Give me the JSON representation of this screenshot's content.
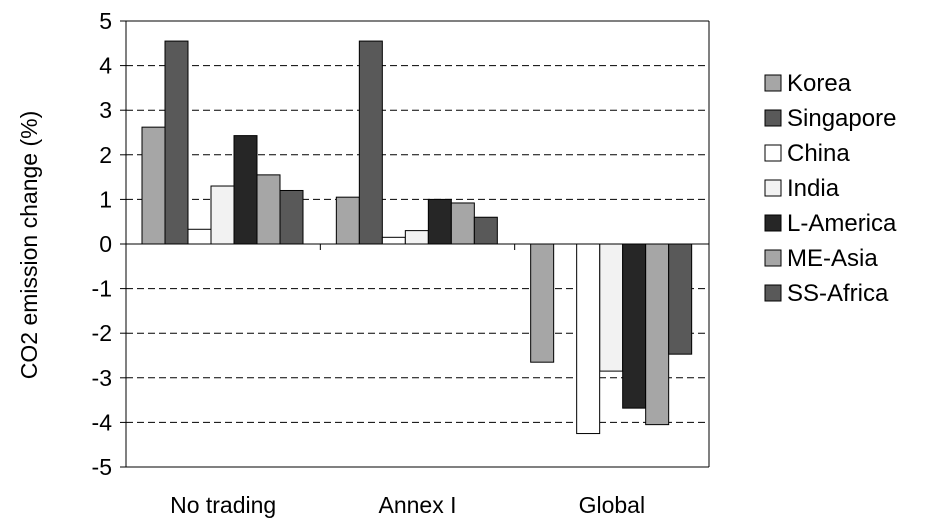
{
  "chart_data": {
    "type": "bar",
    "title": "",
    "xlabel": "",
    "ylabel": "CO2 emission change (%)",
    "ylim": [
      -5,
      5
    ],
    "yticks": [
      5,
      4,
      3,
      2,
      1,
      0,
      -1,
      -2,
      -3,
      -4,
      -5
    ],
    "grid": "dashed-horizontal",
    "legend_position": "right",
    "categories": [
      "No trading",
      "Annex I",
      "Global"
    ],
    "series": [
      {
        "name": "Korea",
        "color": "#a6a6a6",
        "values": [
          2.62,
          1.05,
          -2.65
        ]
      },
      {
        "name": "Singapore",
        "color": "#595959",
        "values": [
          4.55,
          4.55,
          0
        ]
      },
      {
        "name": "China",
        "color": "#ffffff",
        "values": [
          0.33,
          0.15,
          0
        ]
      },
      {
        "name": "India",
        "color": "#f2f2f2",
        "values": [
          1.3,
          0.3,
          -2.85
        ]
      },
      {
        "name": "L-America",
        "color": "#262626",
        "values": [
          2.43,
          1.0,
          -3.68
        ]
      },
      {
        "name": "ME-Asia",
        "color": "#a6a6a6",
        "values": [
          1.55,
          0.92,
          -4.05
        ]
      },
      {
        "name": "SS-Africa",
        "color": "#595959",
        "values": [
          1.2,
          0.6,
          -2.47
        ]
      }
    ],
    "global_extra": {
      "series": "India",
      "value": -4.25,
      "note": ""
    }
  }
}
